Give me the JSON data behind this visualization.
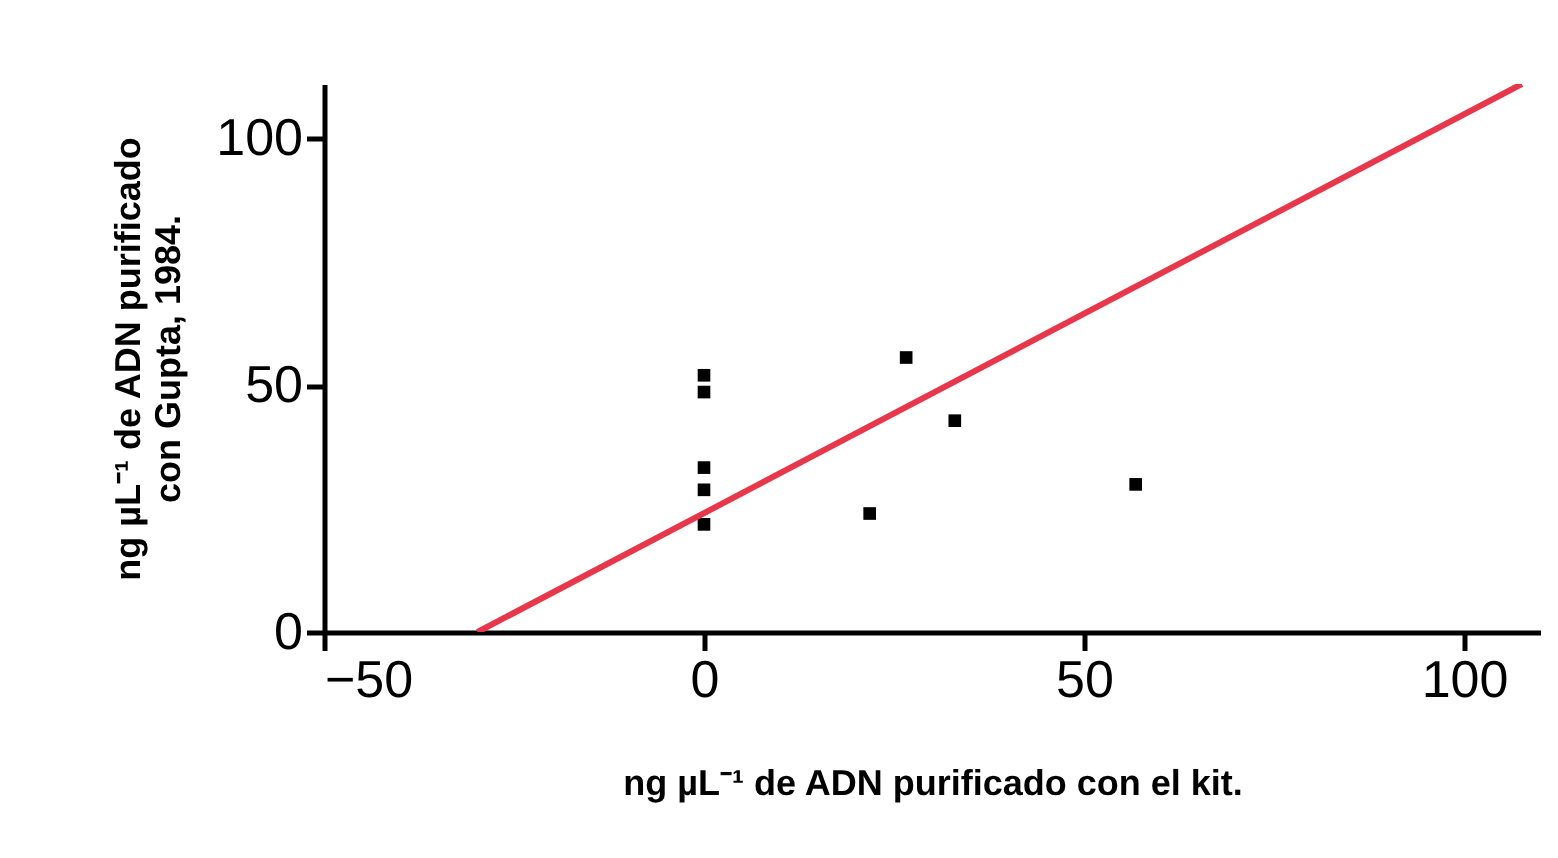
{
  "chart_data": {
    "type": "scatter",
    "xlabel": "ng µL⁻¹ de ADN purificado con el kit.",
    "ylabel": "ng µL⁻¹ de ADN purificado\ncon Gupta, 1984.",
    "xlim": [
      -50,
      110
    ],
    "ylim": [
      0,
      111
    ],
    "xticks": [
      -50,
      0,
      50,
      100
    ],
    "yticks": [
      0,
      50,
      100
    ],
    "grid": false,
    "marker": "square",
    "series": [
      {
        "color": "#000000",
        "x": [
          0,
          0,
          0,
          0,
          0,
          21.8,
          26.6,
          33,
          56.8
        ],
        "values": [
          52,
          48.6,
          33.3,
          28.8,
          21.8,
          24,
          55.6,
          42.8,
          29.9
        ]
      },
      {
        "type": "line",
        "color": "#e8374a",
        "x": [
          -29.8,
          107.6
        ],
        "values": [
          0,
          111
        ],
        "line_style": "solid",
        "marker": "none"
      }
    ]
  }
}
